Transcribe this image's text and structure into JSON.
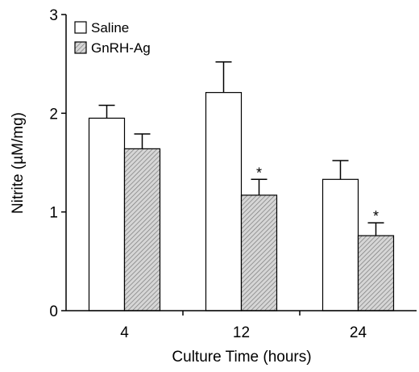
{
  "chart_data": {
    "type": "bar",
    "title": "",
    "xlabel": "Culture Time (hours)",
    "ylabel": "Nitrite (µM/mg)",
    "ylim": [
      0,
      3
    ],
    "yticks": [
      "0",
      "1",
      "2",
      "3"
    ],
    "categories": [
      "4",
      "12",
      "24"
    ],
    "grid": false,
    "legend_position": "top-left",
    "series": [
      {
        "name": "Saline",
        "values": [
          1.95,
          2.21,
          1.33
        ],
        "errors": [
          0.13,
          0.31,
          0.19
        ],
        "fill": "#ffffff"
      },
      {
        "name": "GnRH-Ag",
        "values": [
          1.64,
          1.17,
          0.76
        ],
        "errors": [
          0.15,
          0.16,
          0.13
        ],
        "fill": "#c8c8c8"
      }
    ],
    "annotations": [
      {
        "category": "12",
        "series": "GnRH-Ag",
        "text": "*"
      },
      {
        "category": "24",
        "series": "GnRH-Ag",
        "text": "*"
      }
    ]
  }
}
